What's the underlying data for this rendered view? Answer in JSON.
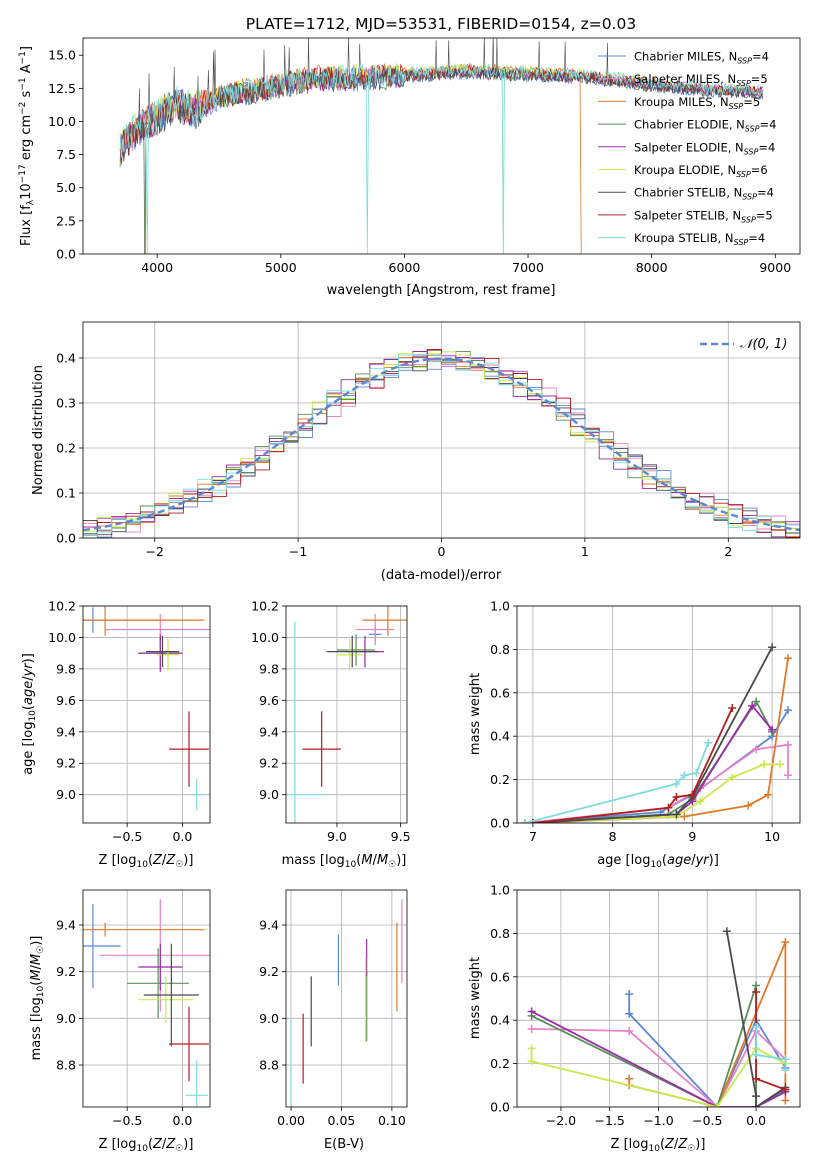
{
  "series": [
    {
      "name": "Chabrier MILES, N_SSP=4",
      "color": "#5b87d6"
    },
    {
      "name": "Salpeter MILES, N_SSP=5",
      "color": "#e882c8"
    },
    {
      "name": "Kroupa MILES, N_SSP=5",
      "color": "#e07a2a"
    },
    {
      "name": "Chabrier ELODIE, N_SSP=4",
      "color": "#5a8f5a"
    },
    {
      "name": "Salpeter ELODIE, N_SSP=4",
      "color": "#9a2aa8"
    },
    {
      "name": "Kroupa ELODIE, N_SSP=6",
      "color": "#c8ea4e"
    },
    {
      "name": "Chabrier STELIB, N_SSP=4",
      "color": "#4a4a4a"
    },
    {
      "name": "Salpeter STELIB, N_SSP=5",
      "color": "#b21e1e"
    },
    {
      "name": "Kroupa STELIB, N_SSP=4",
      "color": "#7edcdc"
    }
  ],
  "chart_data": [
    {
      "id": "spectrum",
      "type": "line",
      "title": "PLATE=1712, MJD=53531, FIBERID=0154, z=0.03",
      "xlabel": "wavelength [Angstrom, rest frame]",
      "ylabel": "Flux [f_λ 10^-17 erg cm^-2 s^-1 A^-1]",
      "xlim": [
        3400,
        9200
      ],
      "ylim": [
        0,
        16.3
      ],
      "xticks": [
        4000,
        5000,
        6000,
        7000,
        8000,
        9000
      ],
      "yticks": [
        0.0,
        2.5,
        5.0,
        7.5,
        10.0,
        12.5,
        15.0
      ],
      "continuum": [
        [
          3700,
          8.0
        ],
        [
          3850,
          9.6
        ],
        [
          4000,
          10.2
        ],
        [
          4150,
          11.4
        ],
        [
          4300,
          10.8
        ],
        [
          4500,
          11.9
        ],
        [
          4800,
          12.4
        ],
        [
          5000,
          12.8
        ],
        [
          5300,
          13.2
        ],
        [
          5600,
          13.3
        ],
        [
          6000,
          13.5
        ],
        [
          6500,
          13.8
        ],
        [
          7000,
          13.6
        ],
        [
          7500,
          13.4
        ],
        [
          8000,
          12.8
        ],
        [
          8500,
          12.4
        ],
        [
          8900,
          12.2
        ]
      ],
      "legend_position": "upper-right",
      "grid": false
    },
    {
      "id": "residuals",
      "type": "histogram",
      "xlabel": "(data-model)/error",
      "ylabel": "Normed distribution",
      "xlim": [
        -2.5,
        2.5
      ],
      "ylim": [
        0,
        0.48
      ],
      "xticks": [
        -2,
        -1,
        0,
        1,
        2
      ],
      "yticks": [
        0.0,
        0.1,
        0.2,
        0.3,
        0.4
      ],
      "reference_curve": "N(0,1)",
      "reference_label": "𝒩(0, 1)",
      "reference_color": "#5b87d6",
      "grid": true
    },
    {
      "id": "age_vs_Z",
      "type": "errorbar",
      "xlabel": "Z [log10(Z/Z☉)]",
      "ylabel": "age  [log10(age/yr)]",
      "xlim": [
        -0.9,
        0.25
      ],
      "ylim": [
        8.82,
        10.2
      ],
      "xticks": [
        -0.5,
        0.0
      ],
      "yticks": [
        9.0,
        9.2,
        9.4,
        9.6,
        9.8,
        10.0,
        10.2
      ],
      "points": [
        {
          "x": -0.81,
          "y": 10.11,
          "xerr": 0.6,
          "yerr": 0.08,
          "c": 0
        },
        {
          "x": -0.2,
          "y": 10.05,
          "xerr": 0.5,
          "yerr": 0.1,
          "c": 1
        },
        {
          "x": -0.7,
          "y": 10.11,
          "xerr": 0.9,
          "yerr": 0.1,
          "c": 2
        },
        {
          "x": -0.2,
          "y": 9.9,
          "xerr": 0.2,
          "yerr": 0.1,
          "c": 3
        },
        {
          "x": -0.2,
          "y": 9.9,
          "xerr": 0.2,
          "yerr": 0.12,
          "c": 4
        },
        {
          "x": -0.13,
          "y": 9.89,
          "xerr": 0.1,
          "yerr": 0.1,
          "c": 5
        },
        {
          "x": -0.18,
          "y": 9.91,
          "xerr": 0.15,
          "yerr": 0.1,
          "c": 6
        },
        {
          "x": 0.06,
          "y": 9.29,
          "xerr": 0.18,
          "yerr": 0.24,
          "c": 7
        },
        {
          "x": 0.13,
          "y": 9.0,
          "xerr": 0.05,
          "yerr": 0.1,
          "c": 8
        }
      ],
      "grid": true
    },
    {
      "id": "age_vs_mass",
      "type": "errorbar",
      "xlabel": "mass [log10(M/M☉)]",
      "ylabel": "",
      "xlim": [
        8.6,
        9.55
      ],
      "ylim": [
        8.82,
        10.2
      ],
      "xticks": [
        9.0,
        9.5
      ],
      "yticks": [
        9.0,
        9.2,
        9.4,
        9.6,
        9.8,
        10.0,
        10.2
      ],
      "points": [
        {
          "x": 9.3,
          "y": 10.02,
          "xerr": 0.05,
          "yerr": 0.06,
          "c": 0
        },
        {
          "x": 9.3,
          "y": 10.05,
          "xerr": 0.15,
          "yerr": 0.1,
          "c": 1
        },
        {
          "x": 9.4,
          "y": 10.11,
          "xerr": 0.2,
          "yerr": 0.1,
          "c": 2
        },
        {
          "x": 9.15,
          "y": 9.92,
          "xerr": 0.15,
          "yerr": 0.1,
          "c": 3
        },
        {
          "x": 9.22,
          "y": 9.91,
          "xerr": 0.15,
          "yerr": 0.1,
          "c": 4
        },
        {
          "x": 9.1,
          "y": 9.89,
          "xerr": 0.1,
          "yerr": 0.1,
          "c": 5
        },
        {
          "x": 9.12,
          "y": 9.91,
          "xerr": 0.2,
          "yerr": 0.1,
          "c": 6
        },
        {
          "x": 8.88,
          "y": 9.29,
          "xerr": 0.15,
          "yerr": 0.24,
          "c": 7
        },
        {
          "x": 8.67,
          "y": 9.0,
          "xerr": 0.25,
          "yerr": 1.1,
          "c": 8
        }
      ],
      "grid": true
    },
    {
      "id": "weight_vs_age",
      "type": "line",
      "xlabel": "age  [log10(age/yr)]",
      "ylabel": "mass weight",
      "xlim": [
        6.8,
        10.35
      ],
      "ylim": [
        0,
        1.0
      ],
      "xticks": [
        7,
        8,
        9,
        10
      ],
      "yticks": [
        0.0,
        0.2,
        0.4,
        0.6,
        0.8,
        1.0
      ],
      "lines": [
        {
          "c": 0,
          "pts": [
            [
              6.9,
              0.0
            ],
            [
              8.6,
              0.05
            ],
            [
              9.0,
              0.13
            ],
            [
              10.0,
              0.4
            ],
            [
              10.2,
              0.52
            ]
          ]
        },
        {
          "c": 1,
          "pts": [
            [
              6.9,
              0.0
            ],
            [
              8.7,
              0.07
            ],
            [
              9.1,
              0.16
            ],
            [
              9.8,
              0.34
            ],
            [
              10.2,
              0.36
            ],
            [
              10.2,
              0.22
            ]
          ]
        },
        {
          "c": 2,
          "pts": [
            [
              7.0,
              0.0
            ],
            [
              8.9,
              0.03
            ],
            [
              9.7,
              0.08
            ],
            [
              9.95,
              0.13
            ],
            [
              10.2,
              0.76
            ]
          ]
        },
        {
          "c": 3,
          "pts": [
            [
              6.9,
              0.0
            ],
            [
              8.7,
              0.04
            ],
            [
              9.0,
              0.11
            ],
            [
              9.8,
              0.56
            ],
            [
              10.0,
              0.42
            ]
          ]
        },
        {
          "c": 4,
          "pts": [
            [
              7.0,
              0.0
            ],
            [
              8.8,
              0.04
            ],
            [
              9.0,
              0.1
            ],
            [
              9.75,
              0.54
            ],
            [
              10.0,
              0.43
            ]
          ]
        },
        {
          "c": 5,
          "pts": [
            [
              6.9,
              0.0
            ],
            [
              8.8,
              0.03
            ],
            [
              9.1,
              0.1
            ],
            [
              9.5,
              0.21
            ],
            [
              9.9,
              0.27
            ],
            [
              10.1,
              0.27
            ]
          ]
        },
        {
          "c": 6,
          "pts": [
            [
              7.0,
              0.0
            ],
            [
              8.8,
              0.04
            ],
            [
              9.0,
              0.12
            ],
            [
              10.0,
              0.81
            ]
          ]
        },
        {
          "c": 7,
          "pts": [
            [
              7.0,
              0.0
            ],
            [
              8.7,
              0.07
            ],
            [
              8.8,
              0.12
            ],
            [
              9.0,
              0.13
            ],
            [
              9.5,
              0.53
            ]
          ]
        },
        {
          "c": 8,
          "pts": [
            [
              6.9,
              0.0
            ],
            [
              8.8,
              0.18
            ],
            [
              8.9,
              0.22
            ],
            [
              9.05,
              0.23
            ],
            [
              9.2,
              0.37
            ]
          ]
        }
      ],
      "grid": true
    },
    {
      "id": "mass_vs_Z",
      "type": "errorbar",
      "xlabel": "Z [log10(Z/Z☉)]",
      "ylabel": "mass [log10(M/M☉)]",
      "xlim": [
        -0.9,
        0.25
      ],
      "ylim": [
        8.62,
        9.55
      ],
      "xticks": [
        -0.5,
        0.0
      ],
      "yticks": [
        8.8,
        9.0,
        9.2,
        9.4
      ],
      "points": [
        {
          "x": -0.81,
          "y": 9.31,
          "xerr": 0.25,
          "yerr": 0.18,
          "c": 0
        },
        {
          "x": -0.2,
          "y": 9.27,
          "xerr": 0.55,
          "yerr": 0.24,
          "c": 1
        },
        {
          "x": -0.7,
          "y": 9.38,
          "xerr": 0.9,
          "yerr": 0.03,
          "c": 2
        },
        {
          "x": -0.22,
          "y": 9.15,
          "xerr": 0.28,
          "yerr": 0.15,
          "c": 3
        },
        {
          "x": -0.2,
          "y": 9.22,
          "xerr": 0.2,
          "yerr": 0.1,
          "c": 4
        },
        {
          "x": -0.15,
          "y": 9.08,
          "xerr": 0.25,
          "yerr": 0.1,
          "c": 5
        },
        {
          "x": -0.1,
          "y": 9.1,
          "xerr": 0.25,
          "yerr": 0.22,
          "c": 6
        },
        {
          "x": 0.06,
          "y": 8.89,
          "xerr": 0.18,
          "yerr": 0.16,
          "c": 7
        },
        {
          "x": 0.13,
          "y": 8.67,
          "xerr": 0.1,
          "yerr": 0.15,
          "c": 8
        }
      ],
      "grid": true
    },
    {
      "id": "mass_vs_ebv",
      "type": "errorbar",
      "xlabel": "E(B-V)",
      "ylabel": "",
      "xlim": [
        -0.005,
        0.115
      ],
      "ylim": [
        8.62,
        9.55
      ],
      "xticks": [
        0.0,
        0.05,
        0.1
      ],
      "yticks": [
        8.8,
        9.0,
        9.2,
        9.4
      ],
      "points": [
        {
          "x": 0.047,
          "y": 9.25,
          "xerr": 0.0,
          "yerr": 0.11,
          "c": 0
        },
        {
          "x": 0.11,
          "y": 9.33,
          "xerr": 0.0,
          "yerr": 0.18,
          "c": 1
        },
        {
          "x": 0.105,
          "y": 9.22,
          "xerr": 0.0,
          "yerr": 0.19,
          "c": 2
        },
        {
          "x": 0.075,
          "y": 9.05,
          "xerr": 0.0,
          "yerr": 0.15,
          "c": 3
        },
        {
          "x": 0.075,
          "y": 9.26,
          "xerr": 0.0,
          "yerr": 0.08,
          "c": 4
        },
        {
          "x": 0.074,
          "y": 9.08,
          "xerr": 0.0,
          "yerr": 0.18,
          "c": 5
        },
        {
          "x": 0.02,
          "y": 9.03,
          "xerr": 0.0,
          "yerr": 0.15,
          "c": 6
        },
        {
          "x": 0.012,
          "y": 8.87,
          "xerr": 0.0,
          "yerr": 0.15,
          "c": 7
        },
        {
          "x": 0.0,
          "y": 8.8,
          "xerr": 0.0,
          "yerr": 0.2,
          "c": 8
        }
      ],
      "grid": true
    },
    {
      "id": "weight_vs_Z",
      "type": "line",
      "xlabel": "Z [log10(Z/Z☉)]",
      "ylabel": "mass weight",
      "xlim": [
        -2.45,
        0.45
      ],
      "ylim": [
        0,
        1.0
      ],
      "xticks": [
        -2.0,
        -1.5,
        -1.0,
        -0.5,
        0.0
      ],
      "yticks": [
        0.0,
        0.2,
        0.4,
        0.6,
        0.8,
        1.0
      ],
      "lines": [
        {
          "c": 0,
          "pts": [
            [
              -1.3,
              0.52
            ],
            [
              -1.3,
              0.43
            ],
            [
              -0.4,
              0.0
            ],
            [
              0.0,
              0.4
            ],
            [
              0.3,
              0.18
            ]
          ]
        },
        {
          "c": 1,
          "pts": [
            [
              -2.3,
              0.36
            ],
            [
              -1.3,
              0.35
            ],
            [
              -0.4,
              0.0
            ],
            [
              0.0,
              0.35
            ],
            [
              0.3,
              0.22
            ]
          ]
        },
        {
          "c": 2,
          "pts": [
            [
              -1.3,
              0.13
            ],
            [
              -1.3,
              0.1
            ],
            [
              -0.4,
              0.0
            ],
            [
              0.3,
              0.76
            ],
            [
              0.3,
              0.03
            ]
          ]
        },
        {
          "c": 3,
          "pts": [
            [
              -2.3,
              0.42
            ],
            [
              -0.4,
              0.0
            ],
            [
              0.0,
              0.56
            ],
            [
              0.0,
              0.0
            ],
            [
              0.3,
              0.08
            ]
          ]
        },
        {
          "c": 4,
          "pts": [
            [
              -2.3,
              0.44
            ],
            [
              -0.4,
              0.0
            ],
            [
              0.0,
              0.0
            ],
            [
              0.3,
              0.07
            ]
          ]
        },
        {
          "c": 5,
          "pts": [
            [
              -2.3,
              0.27
            ],
            [
              -2.3,
              0.21
            ],
            [
              -0.4,
              0.0
            ],
            [
              0.0,
              0.27
            ],
            [
              0.3,
              0.2
            ]
          ]
        },
        {
          "c": 6,
          "pts": [
            [
              -0.3,
              0.81
            ],
            [
              0.0,
              0.05
            ],
            [
              0.0,
              0.0
            ],
            [
              0.3,
              0.09
            ]
          ]
        },
        {
          "c": 7,
          "pts": [
            [
              0.0,
              0.53
            ],
            [
              0.0,
              0.13
            ],
            [
              0.3,
              0.08
            ]
          ]
        },
        {
          "c": 8,
          "pts": [
            [
              0.0,
              0.37
            ],
            [
              0.0,
              0.24
            ],
            [
              0.3,
              0.22
            ],
            [
              0.3,
              0.17
            ]
          ]
        }
      ],
      "grid": true
    }
  ]
}
